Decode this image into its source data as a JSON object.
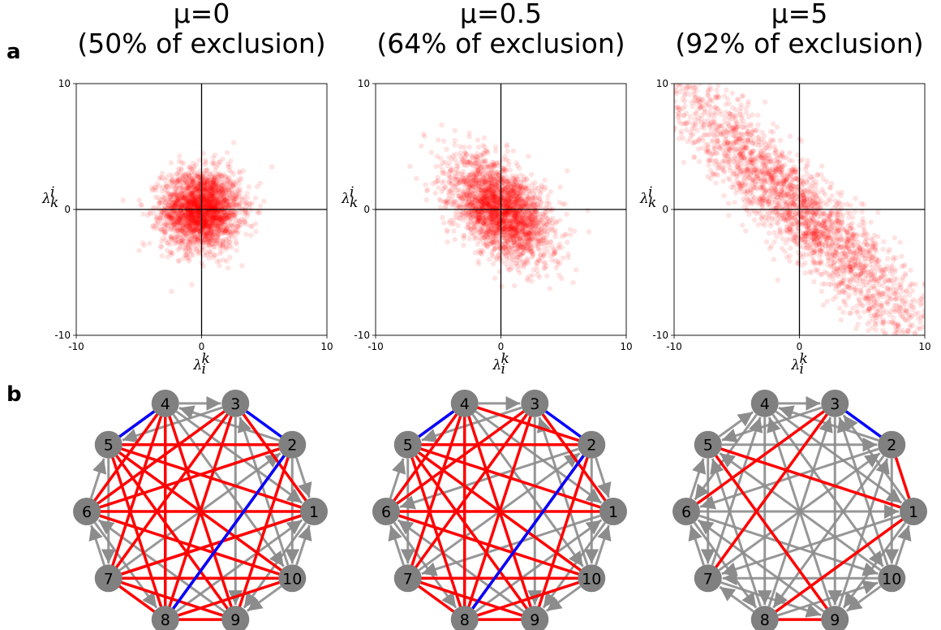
{
  "panel_labels": [
    "a",
    "b"
  ],
  "chart_data": [
    {
      "type": "scatter",
      "title_line1": "μ=0",
      "title_line2": "(50% of exclusion)",
      "mu": 0,
      "exclusion_percent": 50,
      "xlim": [
        -10,
        10
      ],
      "ylim": [
        -10,
        10
      ],
      "x_ticks": [
        "-10",
        "0",
        "10"
      ],
      "y_ticks": [
        "-10",
        "0",
        "10"
      ],
      "xlabel": "λ",
      "xlabel_sub": "i",
      "xlabel_sup": "k",
      "ylabel": "λ",
      "ylabel_sub": "k",
      "ylabel_sup": "i",
      "point_color": "#ff0000",
      "n_points": 2500,
      "x_mean": 0,
      "y_mean": 0,
      "x_sd": 1.55,
      "y_sd": 1.55,
      "correlation": 0,
      "grid": false
    },
    {
      "type": "scatter",
      "title_line1": "μ=0.5",
      "title_line2": "(64% of exclusion)",
      "mu": 0.5,
      "exclusion_percent": 64,
      "xlim": [
        -10,
        10
      ],
      "ylim": [
        -10,
        10
      ],
      "x_ticks": [
        "-10",
        "0",
        "10"
      ],
      "y_ticks": [
        "-10",
        "0",
        "10"
      ],
      "xlabel": "λ",
      "xlabel_sub": "i",
      "xlabel_sup": "k",
      "ylabel": "λ",
      "ylabel_sub": "k",
      "ylabel_sup": "i",
      "point_color": "#ff0000",
      "n_points": 2500,
      "x_mean": 0,
      "y_mean": 0,
      "x_sd": 2.0,
      "y_sd": 2.0,
      "correlation": -0.45,
      "grid": false
    },
    {
      "type": "scatter",
      "title_line1": "μ=5",
      "title_line2": "(92% of exclusion)",
      "mu": 5,
      "exclusion_percent": 92,
      "xlim": [
        -10,
        10
      ],
      "ylim": [
        -10,
        10
      ],
      "x_ticks": [
        "-10",
        "0",
        "10"
      ],
      "y_ticks": [
        "-10",
        "0",
        "10"
      ],
      "xlabel": "λ",
      "xlabel_sub": "i",
      "xlabel_sup": "k",
      "ylabel": "λ",
      "ylabel_sub": "k",
      "ylabel_sup": "i",
      "point_color": "#ff0000",
      "n_points": 2500,
      "x_mean": 0,
      "y_mean": 0,
      "x_sd": 5.5,
      "y_sd": 5.5,
      "correlation": -0.93,
      "grid": false
    }
  ],
  "networks": [
    {
      "node_labels": [
        "1",
        "2",
        "3",
        "4",
        "5",
        "6",
        "7",
        "8",
        "9",
        "10"
      ],
      "node_color": "#808080",
      "edge_colors": {
        "positive": "#ff0000",
        "negative": "#0000ff",
        "directed": "#8c8c8c"
      },
      "red_edges": [
        [
          4,
          9
        ],
        [
          4,
          8
        ],
        [
          4,
          7
        ],
        [
          4,
          5
        ],
        [
          4,
          6
        ],
        [
          3,
          6
        ],
        [
          3,
          7
        ],
        [
          3,
          8
        ],
        [
          5,
          1
        ],
        [
          5,
          9
        ],
        [
          5,
          10
        ],
        [
          6,
          1
        ],
        [
          6,
          2
        ],
        [
          7,
          8
        ],
        [
          7,
          10
        ],
        [
          7,
          9
        ],
        [
          8,
          10
        ],
        [
          8,
          9
        ],
        [
          2,
          9
        ],
        [
          1,
          7
        ],
        [
          5,
          8
        ],
        [
          3,
          1
        ],
        [
          6,
          10
        ],
        [
          2,
          8
        ],
        [
          7,
          1
        ],
        [
          5,
          2
        ]
      ],
      "blue_edges": [
        [
          4,
          5
        ],
        [
          3,
          2
        ],
        [
          2,
          8
        ]
      ]
    },
    {
      "node_labels": [
        "1",
        "2",
        "3",
        "4",
        "5",
        "6",
        "7",
        "8",
        "9",
        "10"
      ],
      "node_color": "#808080",
      "edge_colors": {
        "positive": "#ff0000",
        "negative": "#0000ff",
        "directed": "#8c8c8c"
      },
      "red_edges": [
        [
          4,
          9
        ],
        [
          4,
          8
        ],
        [
          4,
          7
        ],
        [
          4,
          5
        ],
        [
          4,
          6
        ],
        [
          3,
          6
        ],
        [
          3,
          7
        ],
        [
          3,
          8
        ],
        [
          5,
          1
        ],
        [
          5,
          9
        ],
        [
          5,
          10
        ],
        [
          6,
          1
        ],
        [
          7,
          8
        ],
        [
          7,
          10
        ],
        [
          7,
          9
        ],
        [
          8,
          10
        ],
        [
          8,
          9
        ],
        [
          2,
          9
        ],
        [
          5,
          8
        ],
        [
          3,
          1
        ],
        [
          6,
          10
        ],
        [
          2,
          8
        ],
        [
          4,
          2
        ],
        [
          5,
          2
        ]
      ],
      "blue_edges": [
        [
          4,
          5
        ],
        [
          3,
          2
        ],
        [
          2,
          8
        ]
      ]
    },
    {
      "node_labels": [
        "1",
        "2",
        "3",
        "4",
        "5",
        "6",
        "7",
        "8",
        "9",
        "10"
      ],
      "node_color": "#808080",
      "edge_colors": {
        "positive": "#ff0000",
        "negative": "#0000ff",
        "directed": "#8c8c8c"
      },
      "red_edges": [
        [
          3,
          7
        ],
        [
          5,
          1
        ],
        [
          5,
          9
        ],
        [
          1,
          8
        ],
        [
          8,
          9
        ],
        [
          2,
          1
        ],
        [
          3,
          6
        ]
      ],
      "blue_edges": [
        [
          3,
          2
        ]
      ]
    }
  ]
}
